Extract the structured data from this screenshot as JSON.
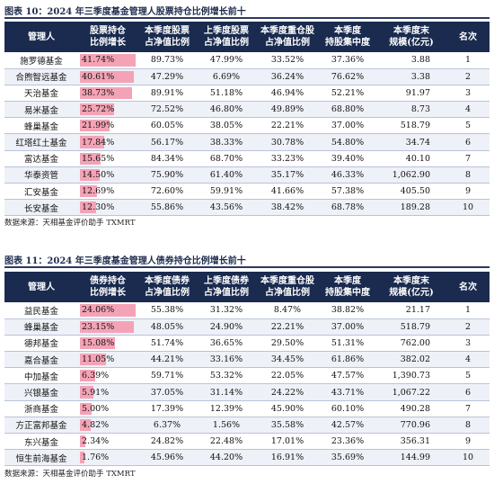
{
  "tables": [
    {
      "caption": "图表 10：2024 年三季度基金管理人股票持仓比例增长前十",
      "source": "数据来源：天相基金评价助手 TXMRT",
      "headers": {
        "manager": "管理人",
        "growth": [
          "股票持仓",
          "比例增长"
        ],
        "cur": [
          "本季度股票",
          "占净值比例"
        ],
        "prev": [
          "上季度股票",
          "占净值比例"
        ],
        "heavy": [
          "本季度重仓股",
          "占净值比例"
        ],
        "conc": [
          "本季度",
          "持股集中度"
        ],
        "scale": [
          "本季度末",
          "规模(亿元)"
        ],
        "rank": "名次"
      },
      "rows": [
        {
          "manager": "施罗德基金",
          "growth": "41.74%",
          "growth_value": 41.74,
          "cur": "89.73%",
          "prev": "47.99%",
          "heavy": "33.52%",
          "conc": "37.36%",
          "scale": "3.88",
          "rank": "1"
        },
        {
          "manager": "合煦智远基金",
          "growth": "40.61%",
          "growth_value": 40.61,
          "cur": "47.29%",
          "prev": "6.69%",
          "heavy": "36.24%",
          "conc": "76.62%",
          "scale": "3.38",
          "rank": "2"
        },
        {
          "manager": "天治基金",
          "growth": "38.73%",
          "growth_value": 38.73,
          "cur": "89.91%",
          "prev": "51.18%",
          "heavy": "46.94%",
          "conc": "52.21%",
          "scale": "91.97",
          "rank": "3"
        },
        {
          "manager": "易米基金",
          "growth": "25.72%",
          "growth_value": 25.72,
          "cur": "72.52%",
          "prev": "46.80%",
          "heavy": "49.89%",
          "conc": "68.80%",
          "scale": "8.73",
          "rank": "4"
        },
        {
          "manager": "蜂巢基金",
          "growth": "21.99%",
          "growth_value": 21.99,
          "cur": "60.05%",
          "prev": "38.05%",
          "heavy": "22.21%",
          "conc": "37.00%",
          "scale": "518.79",
          "rank": "5"
        },
        {
          "manager": "红塔红土基金",
          "growth": "17.84%",
          "growth_value": 17.84,
          "cur": "56.17%",
          "prev": "38.33%",
          "heavy": "30.78%",
          "conc": "54.80%",
          "scale": "34.74",
          "rank": "6"
        },
        {
          "manager": "富达基金",
          "growth": "15.65%",
          "growth_value": 15.65,
          "cur": "84.34%",
          "prev": "68.70%",
          "heavy": "33.23%",
          "conc": "39.40%",
          "scale": "40.10",
          "rank": "7"
        },
        {
          "manager": "华泰资管",
          "growth": "14.50%",
          "growth_value": 14.5,
          "cur": "75.90%",
          "prev": "61.40%",
          "heavy": "35.17%",
          "conc": "46.33%",
          "scale": "1,062.90",
          "rank": "8"
        },
        {
          "manager": "汇安基金",
          "growth": "12.69%",
          "growth_value": 12.69,
          "cur": "72.60%",
          "prev": "59.91%",
          "heavy": "41.66%",
          "conc": "57.38%",
          "scale": "405.50",
          "rank": "9"
        },
        {
          "manager": "长安基金",
          "growth": "12.30%",
          "growth_value": 12.3,
          "cur": "55.86%",
          "prev": "43.56%",
          "heavy": "38.42%",
          "conc": "68.78%",
          "scale": "189.28",
          "rank": "10"
        }
      ]
    },
    {
      "caption": "图表 11：2024 年三季度基金管理人债券持仓比例增长前十",
      "source": "数据来源：天相基金评价助手 TXMRT",
      "headers": {
        "manager": "管理人",
        "growth": [
          "债券持仓",
          "比例增长"
        ],
        "cur": [
          "本季度债券",
          "占净值比例"
        ],
        "prev": [
          "上季度债券",
          "占净值比例"
        ],
        "heavy": [
          "本季度重仓股",
          "占净值比例"
        ],
        "conc": [
          "本季度",
          "持股集中度"
        ],
        "scale": [
          "本季度末",
          "规模(亿元)"
        ],
        "rank": "名次"
      },
      "rows": [
        {
          "manager": "益民基金",
          "growth": "24.06%",
          "growth_value": 24.06,
          "cur": "55.38%",
          "prev": "31.32%",
          "heavy": "8.47%",
          "conc": "38.82%",
          "scale": "21.17",
          "rank": "1"
        },
        {
          "manager": "蜂巢基金",
          "growth": "23.15%",
          "growth_value": 23.15,
          "cur": "48.05%",
          "prev": "24.90%",
          "heavy": "22.21%",
          "conc": "37.00%",
          "scale": "518.79",
          "rank": "2"
        },
        {
          "manager": "德邦基金",
          "growth": "15.08%",
          "growth_value": 15.08,
          "cur": "51.74%",
          "prev": "36.65%",
          "heavy": "29.50%",
          "conc": "51.31%",
          "scale": "762.00",
          "rank": "3"
        },
        {
          "manager": "嘉合基金",
          "growth": "11.05%",
          "growth_value": 11.05,
          "cur": "44.21%",
          "prev": "33.16%",
          "heavy": "34.45%",
          "conc": "61.86%",
          "scale": "382.02",
          "rank": "4"
        },
        {
          "manager": "中加基金",
          "growth": "6.39%",
          "growth_value": 6.39,
          "cur": "59.71%",
          "prev": "53.32%",
          "heavy": "22.05%",
          "conc": "47.57%",
          "scale": "1,390.73",
          "rank": "5"
        },
        {
          "manager": "兴银基金",
          "growth": "5.91%",
          "growth_value": 5.91,
          "cur": "37.05%",
          "prev": "31.14%",
          "heavy": "24.22%",
          "conc": "43.71%",
          "scale": "1,067.22",
          "rank": "6"
        },
        {
          "manager": "浙商基金",
          "growth": "5.00%",
          "growth_value": 5.0,
          "cur": "17.39%",
          "prev": "12.39%",
          "heavy": "45.90%",
          "conc": "60.10%",
          "scale": "490.28",
          "rank": "7"
        },
        {
          "manager": "方正富邦基金",
          "growth": "4.82%",
          "growth_value": 4.82,
          "cur": "6.37%",
          "prev": "1.56%",
          "heavy": "35.58%",
          "conc": "42.57%",
          "scale": "770.96",
          "rank": "8"
        },
        {
          "manager": "东兴基金",
          "growth": "2.34%",
          "growth_value": 2.34,
          "cur": "24.82%",
          "prev": "22.48%",
          "heavy": "17.01%",
          "conc": "23.36%",
          "scale": "356.31",
          "rank": "9"
        },
        {
          "manager": "恒生前海基金",
          "growth": "1.76%",
          "growth_value": 1.76,
          "cur": "45.96%",
          "prev": "44.20%",
          "heavy": "16.91%",
          "conc": "35.69%",
          "scale": "144.99",
          "rank": "10"
        }
      ]
    }
  ],
  "colors": {
    "header_bg": "#1a2b4f",
    "bar": "#f4a3b6",
    "stripe": "#eef1f7"
  }
}
